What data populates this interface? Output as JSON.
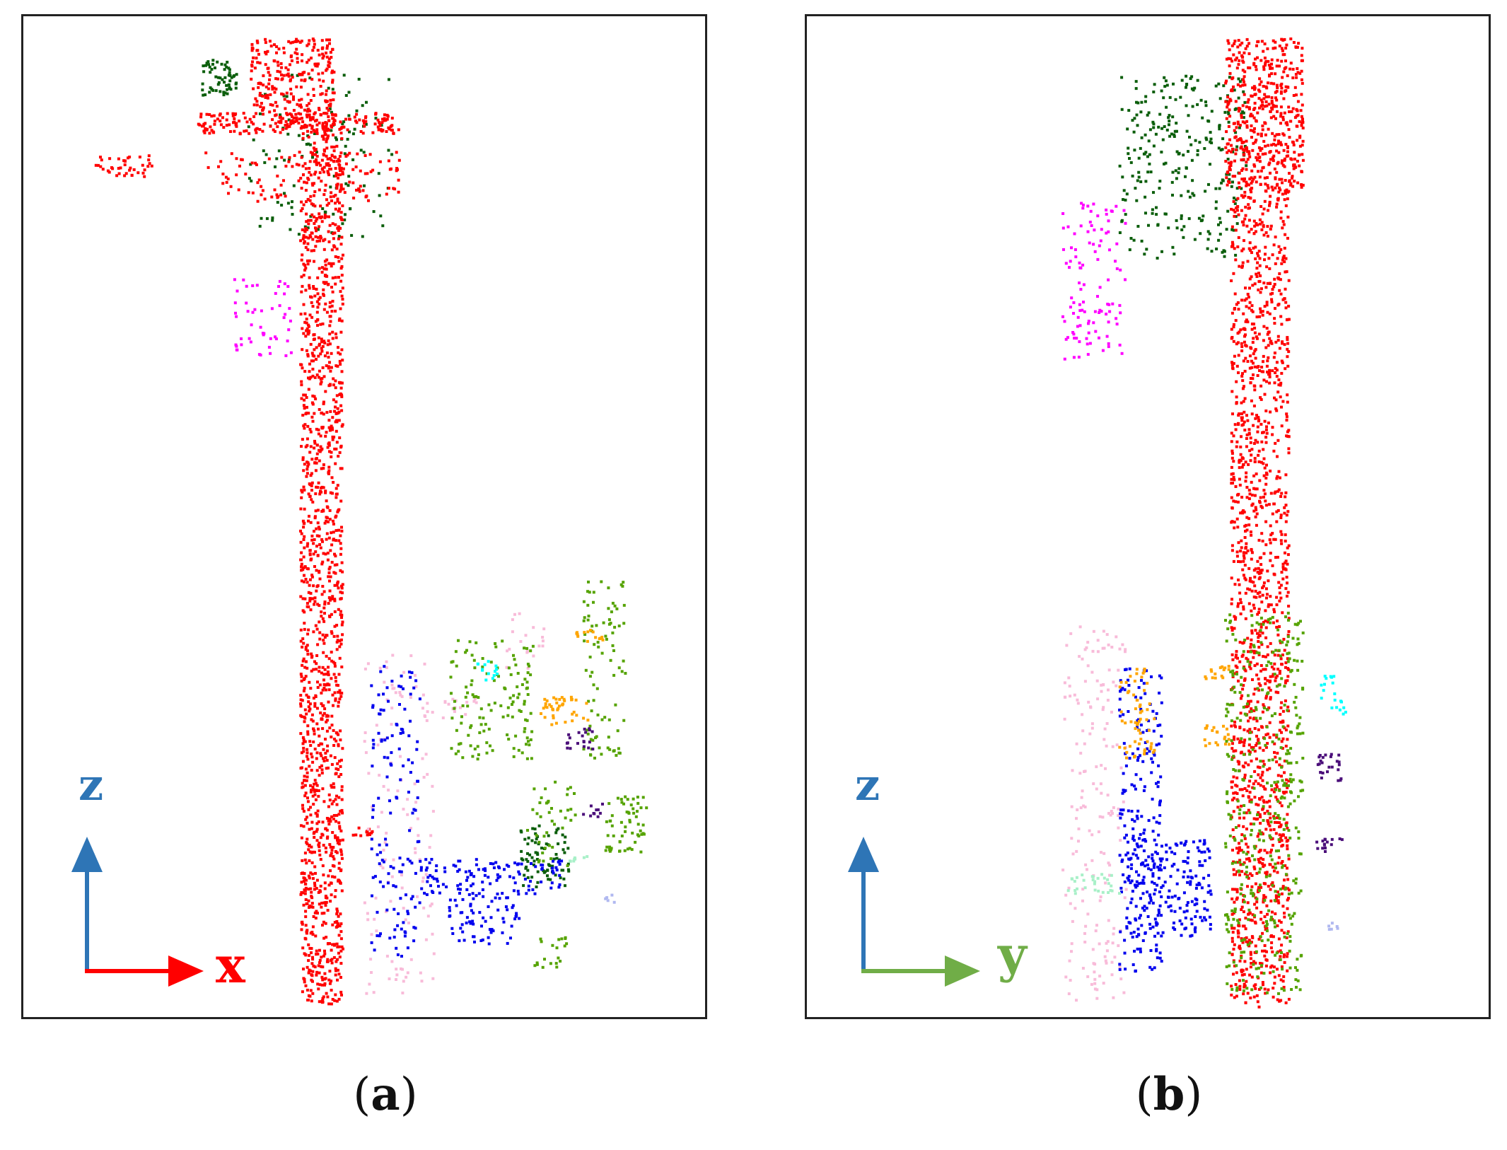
{
  "panels": [
    {
      "id": "a",
      "caption_letter": "a",
      "vertical_axis": {
        "label": "z",
        "color": "#2e75b6"
      },
      "horizontal_axis": {
        "label": "x",
        "color": "#ff0000"
      }
    },
    {
      "id": "b",
      "caption_letter": "b",
      "vertical_axis": {
        "label": "z",
        "color": "#2e75b6"
      },
      "horizontal_axis": {
        "label": "y",
        "color": "#70ad47"
      }
    }
  ],
  "class_colors": {
    "pole": "#ff0000",
    "vegetation_dark": "#0b5e0b",
    "magenta": "#ff00ff",
    "blue": "#0000ee",
    "pink": "#f8bbd9",
    "green": "#55a300",
    "orange": "#ffa500",
    "cyan": "#00ffff",
    "purple": "#4b0f7a",
    "mint": "#a8f0c8",
    "lavender": "#b0b8f0"
  }
}
